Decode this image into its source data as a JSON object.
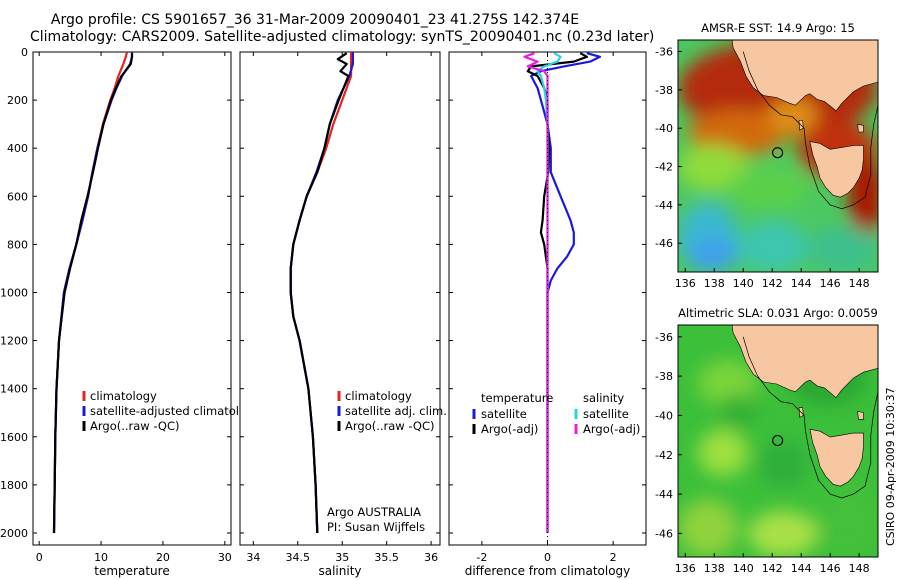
{
  "header": {
    "title_line1": "Argo profile: CS 5901657_36 31-Mar-2009 20090401_23 41.275S 142.374E",
    "title_line2": "Climatology: CARS2009. Satellite-adjusted climatology: synTS_20090401.nc (0.23d later)"
  },
  "footer": {
    "stamp": "CSIRO 09-Apr-2009 10:30:37"
  },
  "colors": {
    "climatology": "#e8231e",
    "satellite": "#1a1adc",
    "argo": "#000000",
    "sal_satellite": "#22d6e6",
    "sal_argo": "#e81ee0",
    "land": "#f7c7a1"
  },
  "chart_data": [
    {
      "type": "line",
      "xlabel": "temperature",
      "ylim": [
        2050,
        0
      ],
      "xlim": [
        -1,
        31
      ],
      "xticks": [
        0,
        10,
        20,
        30
      ],
      "yticks": [
        0,
        200,
        400,
        600,
        800,
        1000,
        1200,
        1400,
        1600,
        1800,
        2000
      ],
      "legend": [
        "climatology",
        "satellite-adjusted climatology",
        "Argo(..raw -QC)"
      ],
      "series": [
        {
          "name": "climatology",
          "color": "climatology",
          "y": [
            0,
            20,
            50,
            100,
            150,
            200,
            300,
            400,
            500,
            600,
            700,
            800,
            900,
            1000,
            1200,
            1400,
            1600,
            1800,
            2000
          ],
          "x": [
            14.2,
            14.0,
            13.6,
            12.8,
            12.2,
            11.5,
            10.3,
            9.4,
            8.6,
            7.9,
            7.0,
            6.0,
            4.9,
            4.0,
            3.2,
            2.8,
            2.6,
            2.5,
            2.4
          ]
        },
        {
          "name": "satellite-adjusted climatology",
          "color": "satellite",
          "y": [
            0,
            20,
            50,
            100,
            150,
            200,
            300,
            400,
            500,
            600,
            700,
            800,
            900,
            1000,
            1200,
            1400,
            1600,
            1800,
            2000
          ],
          "x": [
            15.0,
            15.0,
            14.7,
            13.4,
            12.5,
            11.7,
            10.4,
            9.4,
            8.6,
            7.9,
            7.0,
            6.0,
            4.9,
            4.0,
            3.2,
            2.8,
            2.6,
            2.5,
            2.4
          ]
        },
        {
          "name": "Argo(..raw -QC)",
          "color": "argo",
          "y": [
            5,
            20,
            50,
            100,
            150,
            200,
            300,
            400,
            500,
            600,
            700,
            800,
            900,
            1000,
            1200,
            1400,
            1600,
            1800,
            2000
          ],
          "x": [
            15.0,
            15.0,
            14.8,
            13.3,
            12.4,
            11.6,
            10.4,
            9.5,
            8.7,
            7.8,
            6.8,
            6.0,
            5.0,
            4.1,
            3.2,
            2.8,
            2.6,
            2.5,
            2.4
          ]
        }
      ]
    },
    {
      "type": "line",
      "xlabel": "salinity",
      "ylim": [
        2050,
        0
      ],
      "xlim": [
        33.85,
        36.1
      ],
      "xticks": [
        34,
        34.5,
        35,
        35.5,
        36
      ],
      "yticks": [
        0,
        200,
        400,
        600,
        800,
        1000,
        1200,
        1400,
        1600,
        1800,
        2000
      ],
      "legend": [
        "climatology",
        "satellite adj. clim.",
        "Argo(..raw -QC)"
      ],
      "annotation_line1": "Argo AUSTRALIA",
      "annotation_line2": "PI: Susan Wijffels",
      "series": [
        {
          "name": "climatology",
          "color": "climatology",
          "y": [
            0,
            50,
            100,
            200,
            300,
            400,
            500,
            600,
            700,
            800,
            900,
            1000,
            1100,
            1200,
            1400,
            1600,
            1800,
            2000
          ],
          "x": [
            35.1,
            35.1,
            35.1,
            35.0,
            34.9,
            34.82,
            34.72,
            34.6,
            34.52,
            34.45,
            34.42,
            34.42,
            34.45,
            34.52,
            34.62,
            34.67,
            34.7,
            34.72
          ]
        },
        {
          "name": "satellite adj. clim.",
          "color": "satellite",
          "y": [
            0,
            50,
            100,
            200,
            300,
            400,
            500,
            600,
            700,
            800,
            900,
            1000,
            1100,
            1200,
            1400,
            1600,
            1800,
            2000
          ],
          "x": [
            35.12,
            35.12,
            35.08,
            34.95,
            34.86,
            34.8,
            34.71,
            34.6,
            34.52,
            34.45,
            34.42,
            34.42,
            34.45,
            34.52,
            34.62,
            34.67,
            34.7,
            34.72
          ]
        },
        {
          "name": "Argo(..raw -QC)",
          "color": "argo",
          "y": [
            5,
            30,
            50,
            80,
            100,
            200,
            300,
            400,
            500,
            600,
            700,
            800,
            900,
            1000,
            1100,
            1200,
            1400,
            1600,
            1800,
            2000
          ],
          "x": [
            35.05,
            34.95,
            35.05,
            34.98,
            35.07,
            34.96,
            34.86,
            34.8,
            34.72,
            34.6,
            34.52,
            34.45,
            34.42,
            34.42,
            34.45,
            34.52,
            34.62,
            34.67,
            34.7,
            34.72
          ]
        }
      ]
    },
    {
      "type": "line",
      "xlabel": "difference from climatology",
      "ylim": [
        2050,
        0
      ],
      "xlim": [
        -3,
        3
      ],
      "xticks": [
        -2,
        0,
        2
      ],
      "yticks": [
        0,
        200,
        400,
        600,
        800,
        1000,
        1200,
        1400,
        1600,
        1800,
        2000
      ],
      "legend_group1": "temperature",
      "legend_group2": "salinity",
      "legend": [
        "satellite",
        "Argo(-adj)",
        "satellite",
        "Argo(-adj)"
      ],
      "series": [
        {
          "name": "satellite",
          "group": "temperature",
          "color": "satellite",
          "y": [
            5,
            20,
            40,
            60,
            80,
            100,
            150,
            200,
            300,
            400,
            500,
            600,
            700,
            750,
            800,
            850,
            900,
            950,
            1000,
            1200,
            1500,
            2000
          ],
          "x": [
            1.2,
            1.6,
            1.3,
            0.5,
            -0.2,
            -0.5,
            -0.3,
            -0.2,
            0,
            0.1,
            0.1,
            0.4,
            0.7,
            0.8,
            0.8,
            0.6,
            0.3,
            0.1,
            0,
            0,
            0,
            0
          ]
        },
        {
          "name": "Argo(-adj)",
          "group": "temperature",
          "color": "argo",
          "y": [
            5,
            20,
            40,
            60,
            80,
            100,
            150,
            200,
            300,
            400,
            500,
            600,
            700,
            750,
            800,
            900,
            1000,
            1200,
            1500,
            2000
          ],
          "x": [
            1.0,
            1.2,
            0.8,
            -0.5,
            -0.6,
            -0.3,
            -0.1,
            0,
            0,
            0.05,
            0.02,
            -0.1,
            -0.15,
            -0.2,
            -0.1,
            0,
            0,
            0,
            0,
            0
          ]
        },
        {
          "name": "satellite",
          "group": "salinity",
          "color": "sal_satellite",
          "y": [
            5,
            20,
            40,
            60,
            80,
            100,
            150,
            200,
            300,
            400,
            500,
            600,
            800,
            1000,
            1500,
            2000
          ],
          "x": [
            0.2,
            0.4,
            0.3,
            -0.1,
            -0.3,
            -0.2,
            -0.1,
            -0.05,
            0,
            0,
            0,
            0,
            0,
            0,
            0,
            0
          ]
        },
        {
          "name": "Argo(-adj)",
          "group": "salinity",
          "color": "sal_argo",
          "y": [
            5,
            20,
            40,
            60,
            80,
            100,
            150,
            200,
            300,
            400,
            500,
            600,
            800,
            1000,
            1500,
            2000
          ],
          "x": [
            -0.4,
            -0.7,
            -0.3,
            -0.6,
            -0.1,
            0,
            0,
            0,
            0,
            0,
            0,
            0,
            0,
            0,
            0,
            0
          ]
        }
      ]
    },
    {
      "type": "heatmap",
      "title": "AMSR-E SST: 14.9 Argo: 15",
      "xlim": [
        135.5,
        149.3
      ],
      "ylim": [
        -47.5,
        -35.4
      ],
      "xticks": [
        136,
        138,
        140,
        142,
        144,
        146,
        148
      ],
      "yticks": [
        -36,
        -38,
        -40,
        -42,
        -44,
        -46
      ],
      "float_lon": 142.374,
      "float_lat": -41.275
    },
    {
      "type": "heatmap",
      "title": "Altimetric SLA: 0.031 Argo: 0.0059",
      "xlim": [
        135.5,
        149.3
      ],
      "ylim": [
        -47.2,
        -35.4
      ],
      "xticks": [
        136,
        138,
        140,
        142,
        144,
        146,
        148
      ],
      "yticks": [
        -36,
        -38,
        -40,
        -42,
        -44,
        -46
      ],
      "float_lon": 142.374,
      "float_lat": -41.275
    }
  ]
}
